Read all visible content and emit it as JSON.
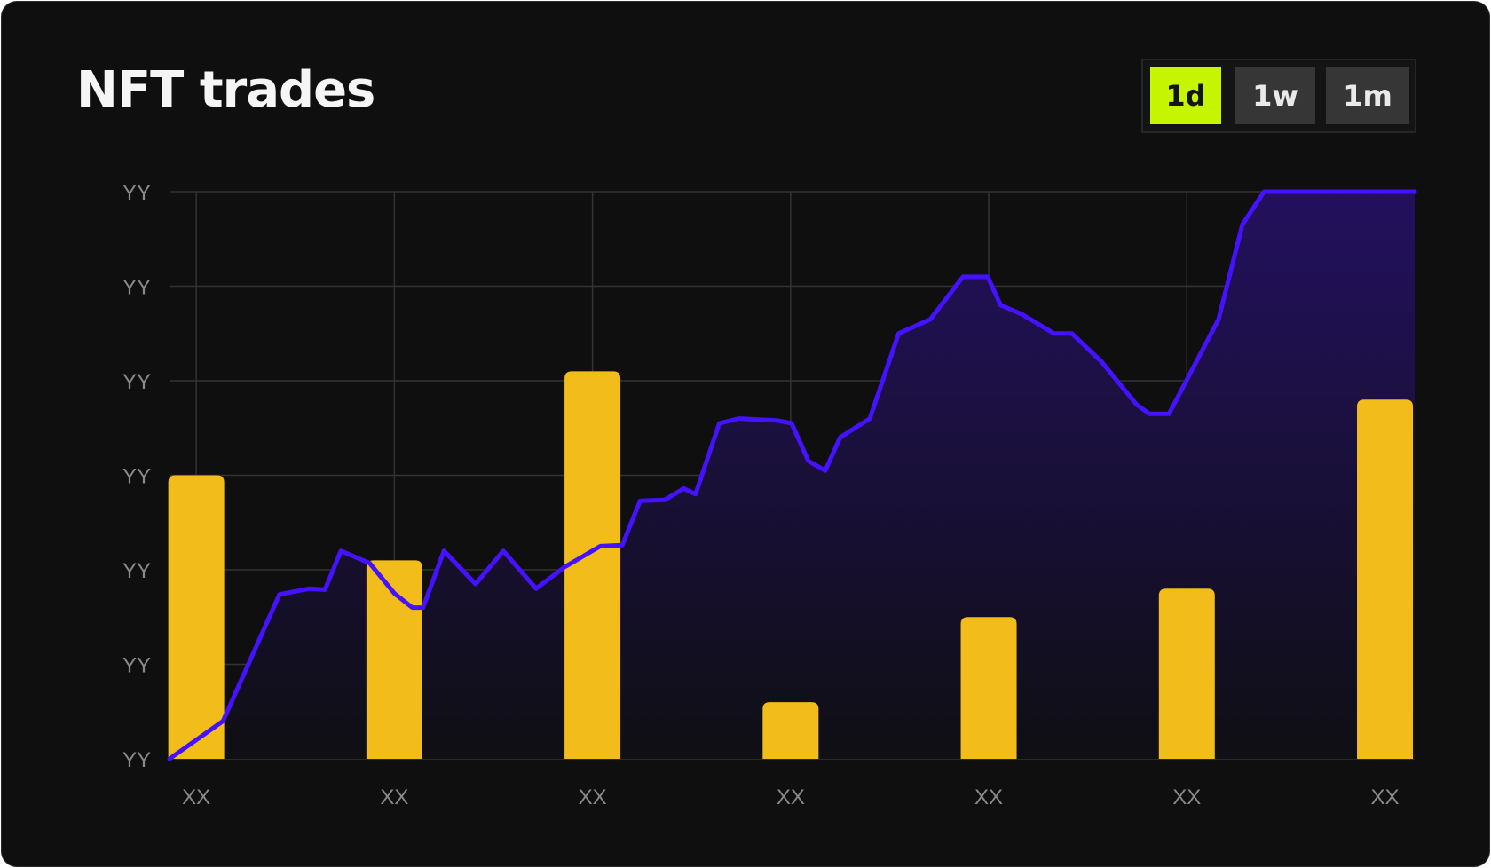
{
  "title": "NFT trades",
  "range_buttons": [
    {
      "label": "1d",
      "active": true
    },
    {
      "label": "1w",
      "active": false
    },
    {
      "label": "1m",
      "active": false
    }
  ],
  "colors": {
    "background": "#0f0f0f",
    "bar": "#f2bc1b",
    "line": "#4512ff",
    "area_top": "#23105e",
    "area_bottom": "#0f0f14",
    "grid": "#333333",
    "active_button": "#c6f500",
    "button": "#363636"
  },
  "chart_data": {
    "type": "bar+line",
    "categories": [
      "XX",
      "XX",
      "XX",
      "XX",
      "XX",
      "XX",
      "XX"
    ],
    "y_ticks": [
      "YY",
      "YY",
      "YY",
      "YY",
      "YY",
      "YY",
      "YY"
    ],
    "ylim": [
      0,
      6
    ],
    "xlim": [
      -0.135,
      6.15
    ],
    "bars": [
      3.0,
      2.1,
      4.1,
      0.6,
      1.5,
      1.8,
      3.8
    ],
    "line": {
      "x": [
        -0.135,
        0.135,
        0.42,
        0.57,
        0.65,
        0.73,
        0.875,
        1.0,
        1.09,
        1.145,
        1.25,
        1.41,
        1.55,
        1.715,
        1.86,
        2.04,
        2.15,
        2.24,
        2.365,
        2.46,
        2.52,
        2.64,
        2.74,
        2.93,
        3.005,
        3.09,
        3.175,
        3.25,
        3.4,
        3.545,
        3.705,
        3.87,
        3.995,
        4.06,
        4.17,
        4.33,
        4.42,
        4.57,
        4.745,
        4.81,
        4.91,
        5.16,
        5.28,
        5.39,
        5.55,
        5.905,
        6.0,
        6.15
      ],
      "y": [
        0.0,
        0.4,
        1.74,
        1.8,
        1.79,
        2.2,
        2.07,
        1.75,
        1.6,
        1.6,
        2.2,
        1.85,
        2.2,
        1.8,
        2.03,
        2.25,
        2.26,
        2.73,
        2.74,
        2.86,
        2.8,
        3.55,
        3.6,
        3.58,
        3.55,
        3.15,
        3.05,
        3.4,
        3.6,
        4.5,
        4.65,
        5.1,
        5.1,
        4.8,
        4.7,
        4.5,
        4.5,
        4.2,
        3.75,
        3.65,
        3.65,
        4.65,
        5.65,
        6.0,
        6.0,
        6.0,
        6.0,
        6.0
      ]
    }
  }
}
